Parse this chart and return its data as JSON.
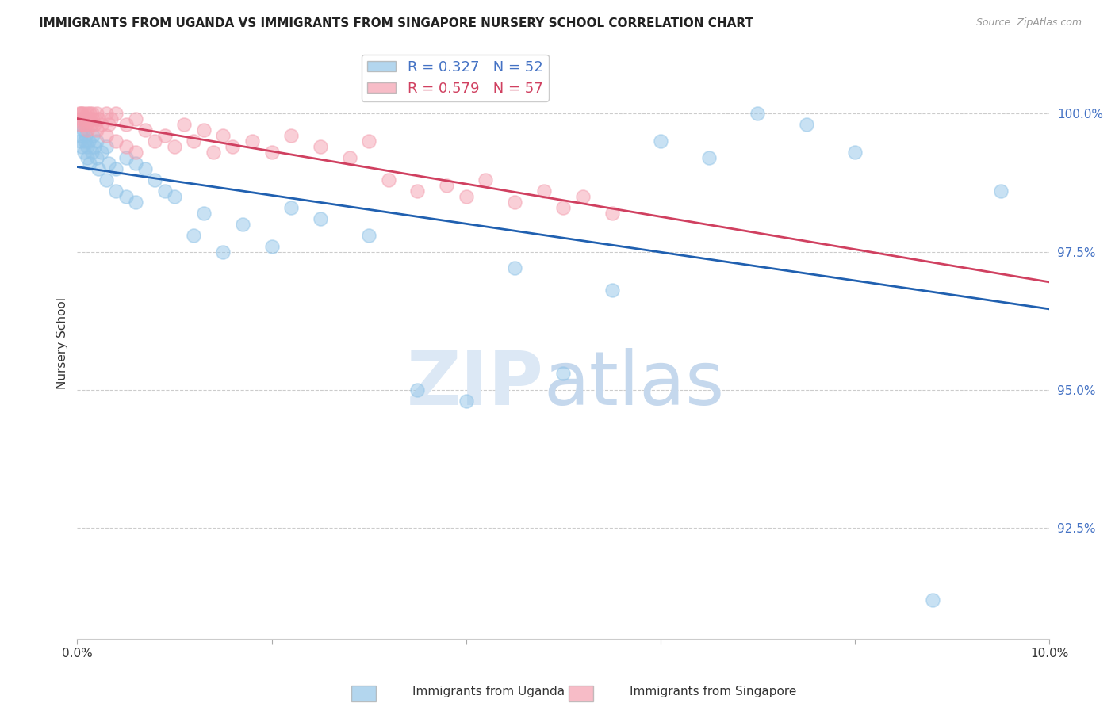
{
  "title": "IMMIGRANTS FROM UGANDA VS IMMIGRANTS FROM SINGAPORE NURSERY SCHOOL CORRELATION CHART",
  "source": "Source: ZipAtlas.com",
  "ylabel": "Nursery School",
  "legend_uganda": "Immigrants from Uganda",
  "legend_singapore": "Immigrants from Singapore",
  "R_uganda": 0.327,
  "N_uganda": 52,
  "R_singapore": 0.579,
  "N_singapore": 57,
  "color_uganda": "#93c5e8",
  "color_singapore": "#f4a0b0",
  "trendline_uganda": "#2060b0",
  "trendline_singapore": "#d04060",
  "xmin": 0.0,
  "xmax": 0.1,
  "ymin": 90.5,
  "ymax": 101.2,
  "yticks": [
    92.5,
    95.0,
    97.5,
    100.0
  ],
  "xticks": [
    0.0,
    0.02,
    0.04,
    0.06,
    0.08,
    0.1
  ],
  "xtick_labels": [
    "0.0%",
    "",
    "",
    "",
    "",
    "10.0%"
  ],
  "ytick_labels": [
    "92.5%",
    "95.0%",
    "97.5%",
    "100.0%"
  ],
  "uganda_x": [
    0.0002,
    0.0003,
    0.0004,
    0.0005,
    0.0006,
    0.0007,
    0.0008,
    0.0009,
    0.001,
    0.001,
    0.0012,
    0.0013,
    0.0015,
    0.0016,
    0.0018,
    0.002,
    0.002,
    0.0022,
    0.0025,
    0.003,
    0.003,
    0.0032,
    0.004,
    0.004,
    0.005,
    0.005,
    0.006,
    0.006,
    0.007,
    0.008,
    0.009,
    0.01,
    0.012,
    0.013,
    0.015,
    0.017,
    0.02,
    0.022,
    0.025,
    0.03,
    0.035,
    0.04,
    0.045,
    0.05,
    0.055,
    0.06,
    0.065,
    0.07,
    0.075,
    0.08,
    0.088,
    0.095
  ],
  "uganda_y": [
    99.8,
    99.5,
    99.6,
    99.4,
    99.7,
    99.3,
    99.5,
    99.6,
    99.2,
    99.4,
    99.5,
    99.1,
    99.3,
    99.6,
    99.4,
    99.2,
    99.5,
    99.0,
    99.3,
    99.4,
    98.8,
    99.1,
    99.0,
    98.6,
    99.2,
    98.5,
    99.1,
    98.4,
    99.0,
    98.8,
    98.6,
    98.5,
    97.8,
    98.2,
    97.5,
    98.0,
    97.6,
    98.3,
    98.1,
    97.8,
    95.0,
    94.8,
    97.2,
    95.3,
    96.8,
    99.5,
    99.2,
    100.0,
    99.8,
    99.3,
    91.2,
    98.6
  ],
  "singapore_x": [
    0.0002,
    0.0003,
    0.0004,
    0.0004,
    0.0005,
    0.0006,
    0.0007,
    0.0008,
    0.0009,
    0.001,
    0.001,
    0.0012,
    0.0013,
    0.0014,
    0.0015,
    0.0016,
    0.0018,
    0.002,
    0.002,
    0.0022,
    0.0025,
    0.003,
    0.003,
    0.0032,
    0.0035,
    0.004,
    0.004,
    0.005,
    0.005,
    0.006,
    0.006,
    0.007,
    0.008,
    0.009,
    0.01,
    0.011,
    0.012,
    0.013,
    0.014,
    0.015,
    0.016,
    0.018,
    0.02,
    0.022,
    0.025,
    0.028,
    0.03,
    0.032,
    0.035,
    0.038,
    0.04,
    0.042,
    0.045,
    0.048,
    0.05,
    0.052,
    0.055
  ],
  "singapore_y": [
    100.0,
    99.8,
    100.0,
    99.9,
    100.0,
    99.8,
    100.0,
    99.9,
    99.8,
    100.0,
    99.7,
    99.9,
    100.0,
    99.8,
    100.0,
    99.9,
    99.8,
    100.0,
    99.7,
    99.9,
    99.8,
    100.0,
    99.6,
    99.8,
    99.9,
    100.0,
    99.5,
    99.8,
    99.4,
    99.9,
    99.3,
    99.7,
    99.5,
    99.6,
    99.4,
    99.8,
    99.5,
    99.7,
    99.3,
    99.6,
    99.4,
    99.5,
    99.3,
    99.6,
    99.4,
    99.2,
    99.5,
    98.8,
    98.6,
    98.7,
    98.5,
    98.8,
    98.4,
    98.6,
    98.3,
    98.5,
    98.2
  ]
}
